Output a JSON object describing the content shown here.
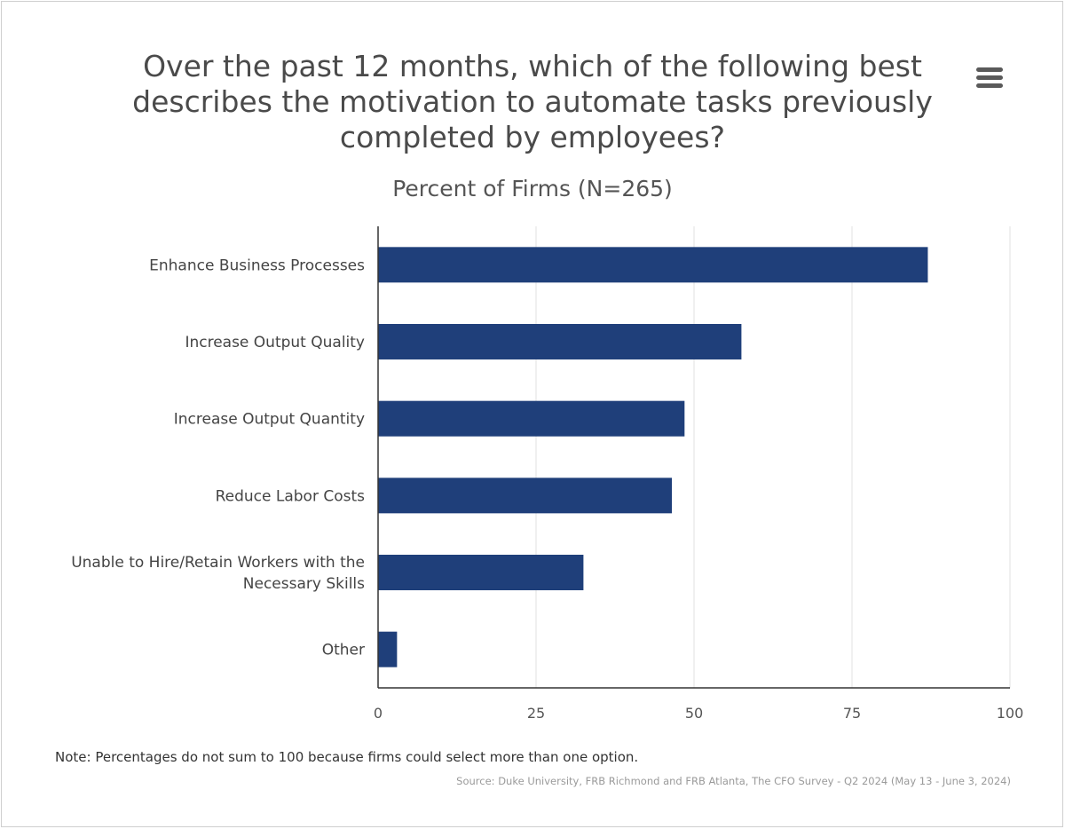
{
  "chart_data": {
    "type": "bar",
    "orientation": "horizontal",
    "title": "Over the past 12 months, which of the following best describes the motivation to automate tasks previously completed by employees?",
    "subtitle": "Percent of Firms (N=265)",
    "categories": [
      [
        "Enhance Business Processes"
      ],
      [
        "Increase Output Quality"
      ],
      [
        "Increase Output Quantity"
      ],
      [
        "Reduce Labor Costs"
      ],
      [
        "Unable to Hire/Retain Workers with the",
        "Necessary Skills"
      ],
      [
        "Other"
      ]
    ],
    "values": [
      87,
      57.5,
      48.5,
      46.5,
      32.5,
      3
    ],
    "xlim": [
      0,
      100
    ],
    "xticks": [
      "0",
      "25",
      "50",
      "75",
      "100"
    ],
    "xlabel": "",
    "ylabel": "",
    "grid": "vertical",
    "legend": "none",
    "bar_color": "#1f3f7a",
    "grid_color": "#e2e2e2",
    "axis_color": "#333333"
  },
  "footer": {
    "note": "Note: Percentages do not sum to 100 because firms could select more than one option.",
    "source": "Source: Duke University, FRB Richmond and FRB Atlanta, The CFO Survey - Q2 2024 (May 13 - June 3, 2024)"
  },
  "menu": {
    "icon": "hamburger-menu-icon"
  }
}
